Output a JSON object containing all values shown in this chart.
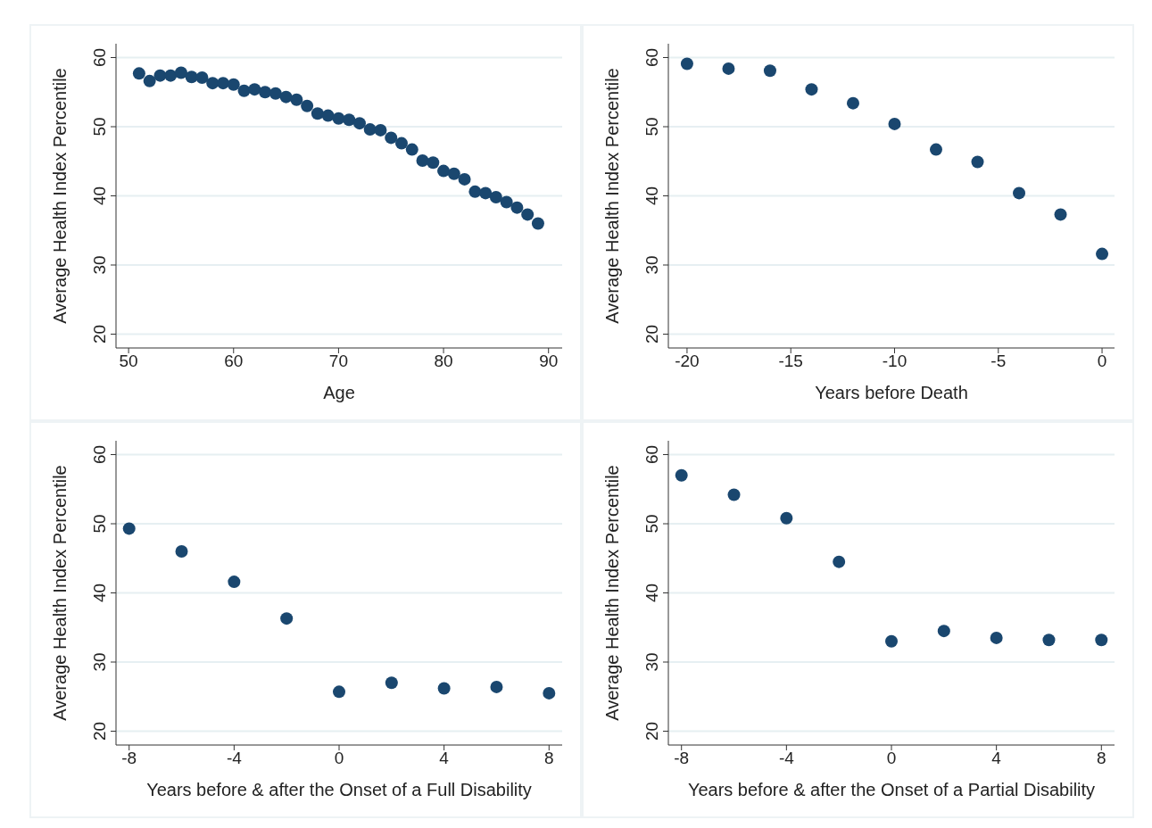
{
  "chart_data": [
    {
      "type": "scatter",
      "xlabel": "Age",
      "ylabel": "Average Health Index Percentile",
      "x": [
        51,
        52,
        53,
        54,
        55,
        56,
        57,
        58,
        59,
        60,
        61,
        62,
        63,
        64,
        65,
        66,
        67,
        68,
        69,
        70,
        71,
        72,
        73,
        74,
        75,
        76,
        77,
        78,
        79,
        80,
        81,
        82,
        83,
        84,
        85,
        86,
        87,
        88,
        89
      ],
      "series": [
        {
          "color": "#1a476f",
          "values": [
            57.7,
            56.6,
            57.4,
            57.4,
            57.8,
            57.2,
            57.1,
            56.3,
            56.3,
            56.1,
            55.2,
            55.4,
            55.0,
            54.8,
            54.3,
            53.9,
            53.0,
            51.9,
            51.6,
            51.2,
            51.0,
            50.5,
            49.6,
            49.5,
            48.4,
            47.6,
            46.7,
            45.1,
            44.8,
            43.6,
            43.2,
            42.4,
            40.6,
            40.4,
            39.8,
            39.1,
            38.3,
            37.3,
            36.0
          ]
        }
      ],
      "xlim": [
        48.8,
        91.3
      ],
      "xticks": [
        50,
        60,
        70,
        80,
        90
      ],
      "ylim": [
        18,
        62
      ],
      "yticks": [
        20,
        30,
        40,
        50,
        60
      ],
      "grid": "y",
      "marker": "circle"
    },
    {
      "type": "scatter",
      "xlabel": "Years before Death",
      "ylabel": "Average Health Index Percentile",
      "x": [
        -20,
        -18,
        -16,
        -14,
        -12,
        -10,
        -8,
        -6,
        -4,
        -2,
        0
      ],
      "series": [
        {
          "color": "#1a476f",
          "values": [
            59.1,
            58.4,
            58.1,
            55.4,
            53.4,
            50.4,
            46.7,
            44.9,
            40.4,
            37.3,
            31.6
          ]
        }
      ],
      "xlim": [
        -20.9,
        0.6
      ],
      "xticks": [
        -20,
        -15,
        -10,
        -5,
        0
      ],
      "ylim": [
        18,
        62
      ],
      "yticks": [
        20,
        30,
        40,
        50,
        60
      ],
      "grid": "y",
      "marker": "circle"
    },
    {
      "type": "scatter",
      "xlabel": "Years before & after the Onset of a Full Disability",
      "ylabel": "Average Health Index Percentile",
      "x": [
        -8,
        -6,
        -4,
        -2,
        0,
        2,
        4,
        6,
        8
      ],
      "series": [
        {
          "color": "#1a476f",
          "values": [
            49.3,
            46.0,
            41.6,
            36.3,
            25.7,
            27.0,
            26.2,
            26.4,
            25.5
          ]
        }
      ],
      "xlim": [
        -8.5,
        8.5
      ],
      "xticks": [
        -8,
        -4,
        0,
        4,
        8
      ],
      "ylim": [
        18,
        62
      ],
      "yticks": [
        20,
        30,
        40,
        50,
        60
      ],
      "grid": "y",
      "marker": "circle"
    },
    {
      "type": "scatter",
      "xlabel": "Years before & after the Onset of a Partial Disability",
      "ylabel": "Average Health Index Percentile",
      "x": [
        -8,
        -6,
        -4,
        -2,
        0,
        2,
        4,
        6,
        8
      ],
      "series": [
        {
          "color": "#1a476f",
          "values": [
            57.0,
            54.2,
            50.8,
            44.5,
            33.0,
            34.5,
            33.5,
            33.2,
            33.2
          ]
        }
      ],
      "xlim": [
        -8.5,
        8.5
      ],
      "xticks": [
        -8,
        -4,
        0,
        4,
        8
      ],
      "ylim": [
        18,
        62
      ],
      "yticks": [
        20,
        30,
        40,
        50,
        60
      ],
      "grid": "y",
      "marker": "circle"
    }
  ]
}
